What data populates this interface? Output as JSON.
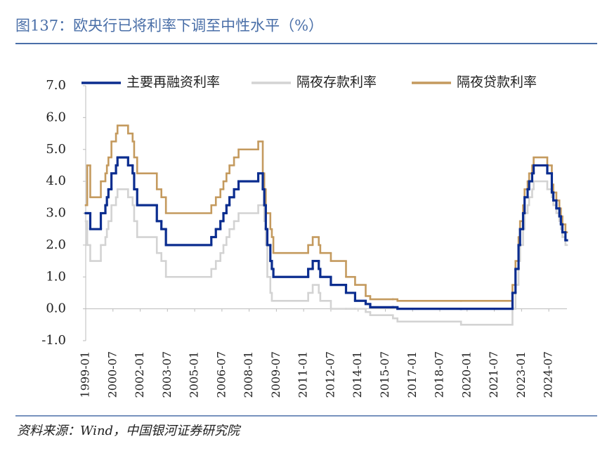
{
  "chart_data": {
    "type": "step-line",
    "title": "图137：欧央行已将利率下调至中性水平（%）",
    "source": "资料来源：Wind，中国银河证券研究院",
    "x": [
      "1999-01",
      "1999-02",
      "1999-04",
      "1999-11",
      "2000-02",
      "2000-03",
      "2000-04",
      "2000-06",
      "2000-09",
      "2000-10",
      "2001-05",
      "2001-08",
      "2001-09",
      "2001-11",
      "2002-12",
      "2003-03",
      "2003-06",
      "2005-12",
      "2006-03",
      "2006-06",
      "2006-08",
      "2006-10",
      "2006-12",
      "2007-03",
      "2007-06",
      "2008-07",
      "2008-10",
      "2008-11",
      "2008-12",
      "2009-01",
      "2009-03",
      "2009-04",
      "2009-05",
      "2011-04",
      "2011-07",
      "2011-11",
      "2011-12",
      "2012-07",
      "2013-05",
      "2013-11",
      "2014-06",
      "2014-09",
      "2015-12",
      "2016-03",
      "2019-09",
      "2022-07",
      "2022-09",
      "2022-11",
      "2022-12",
      "2023-02",
      "2023-03",
      "2023-05",
      "2023-06",
      "2023-08",
      "2023-09",
      "2024-06",
      "2024-09",
      "2024-10",
      "2024-12",
      "2025-02",
      "2025-03",
      "2025-04",
      "2025-06"
    ],
    "xlim": [
      "1999-01",
      "2025-07"
    ],
    "xticks": [
      "1999-01",
      "2000-07",
      "2002-01",
      "2003-07",
      "2005-01",
      "2006-07",
      "2008-01",
      "2009-07",
      "2011-01",
      "2012-07",
      "2014-01",
      "2015-07",
      "2017-01",
      "2018-07",
      "2020-01",
      "2021-07",
      "2023-01",
      "2024-07"
    ],
    "ylim": [
      -1,
      7
    ],
    "yticks": [
      {
        "value": -1,
        "label": "-1.0"
      },
      {
        "value": 0,
        "label": "0.0"
      },
      {
        "value": 1,
        "label": "1.0"
      },
      {
        "value": 2,
        "label": "2.0"
      },
      {
        "value": 3,
        "label": "3.0"
      },
      {
        "value": 4,
        "label": "4.0"
      },
      {
        "value": 5,
        "label": "5.0"
      },
      {
        "value": 6,
        "label": "6.0"
      },
      {
        "value": 7,
        "label": "7.0"
      }
    ],
    "series": [
      {
        "name": "主要再融资利率",
        "color": "#0b2d8f",
        "values": [
          3.0,
          3.0,
          2.5,
          3.0,
          3.25,
          3.5,
          3.75,
          4.25,
          4.5,
          4.75,
          4.5,
          4.25,
          3.75,
          3.25,
          2.75,
          2.5,
          2.0,
          2.25,
          2.5,
          2.75,
          3.0,
          3.25,
          3.5,
          3.75,
          4.0,
          4.25,
          3.75,
          3.25,
          2.5,
          2.0,
          1.5,
          1.25,
          1.0,
          1.25,
          1.5,
          1.25,
          1.0,
          0.75,
          0.5,
          0.25,
          0.15,
          0.05,
          0.05,
          0.0,
          0.0,
          0.5,
          1.25,
          2.0,
          2.5,
          3.0,
          3.5,
          3.75,
          4.0,
          4.25,
          4.5,
          4.25,
          3.65,
          3.4,
          3.15,
          2.9,
          2.65,
          2.4,
          2.15
        ]
      },
      {
        "name": "隔夜存款利率",
        "color": "#d3d3d3",
        "values": [
          2.75,
          2.0,
          1.5,
          2.0,
          2.25,
          2.5,
          2.75,
          3.25,
          3.5,
          3.75,
          3.5,
          3.25,
          2.75,
          2.25,
          1.75,
          1.5,
          1.0,
          1.25,
          1.5,
          1.75,
          2.0,
          2.25,
          2.5,
          2.75,
          3.0,
          3.25,
          3.25,
          2.75,
          2.0,
          1.0,
          0.5,
          0.25,
          0.25,
          0.5,
          0.75,
          0.5,
          0.25,
          0.0,
          0.0,
          0.0,
          -0.1,
          -0.2,
          -0.3,
          -0.4,
          -0.5,
          0.0,
          0.75,
          1.5,
          2.0,
          2.5,
          3.0,
          3.25,
          3.5,
          3.75,
          4.0,
          3.75,
          3.5,
          3.25,
          3.0,
          2.75,
          2.5,
          2.25,
          2.0
        ]
      },
      {
        "name": "隔夜贷款利率",
        "color": "#c49a5e",
        "values": [
          3.25,
          4.5,
          3.5,
          4.0,
          4.25,
          4.5,
          4.75,
          5.25,
          5.5,
          5.75,
          5.5,
          5.25,
          4.75,
          4.25,
          3.75,
          3.5,
          3.0,
          3.25,
          3.5,
          3.75,
          4.0,
          4.25,
          4.5,
          4.75,
          5.0,
          5.25,
          4.25,
          3.75,
          3.0,
          3.0,
          2.5,
          2.25,
          1.75,
          2.0,
          2.25,
          2.0,
          1.75,
          1.5,
          1.0,
          0.75,
          0.4,
          0.3,
          0.3,
          0.25,
          0.25,
          0.75,
          1.5,
          2.25,
          2.75,
          3.25,
          3.75,
          4.0,
          4.25,
          4.5,
          4.75,
          4.5,
          3.9,
          3.65,
          3.4,
          3.15,
          2.9,
          2.65,
          2.4
        ]
      }
    ]
  }
}
